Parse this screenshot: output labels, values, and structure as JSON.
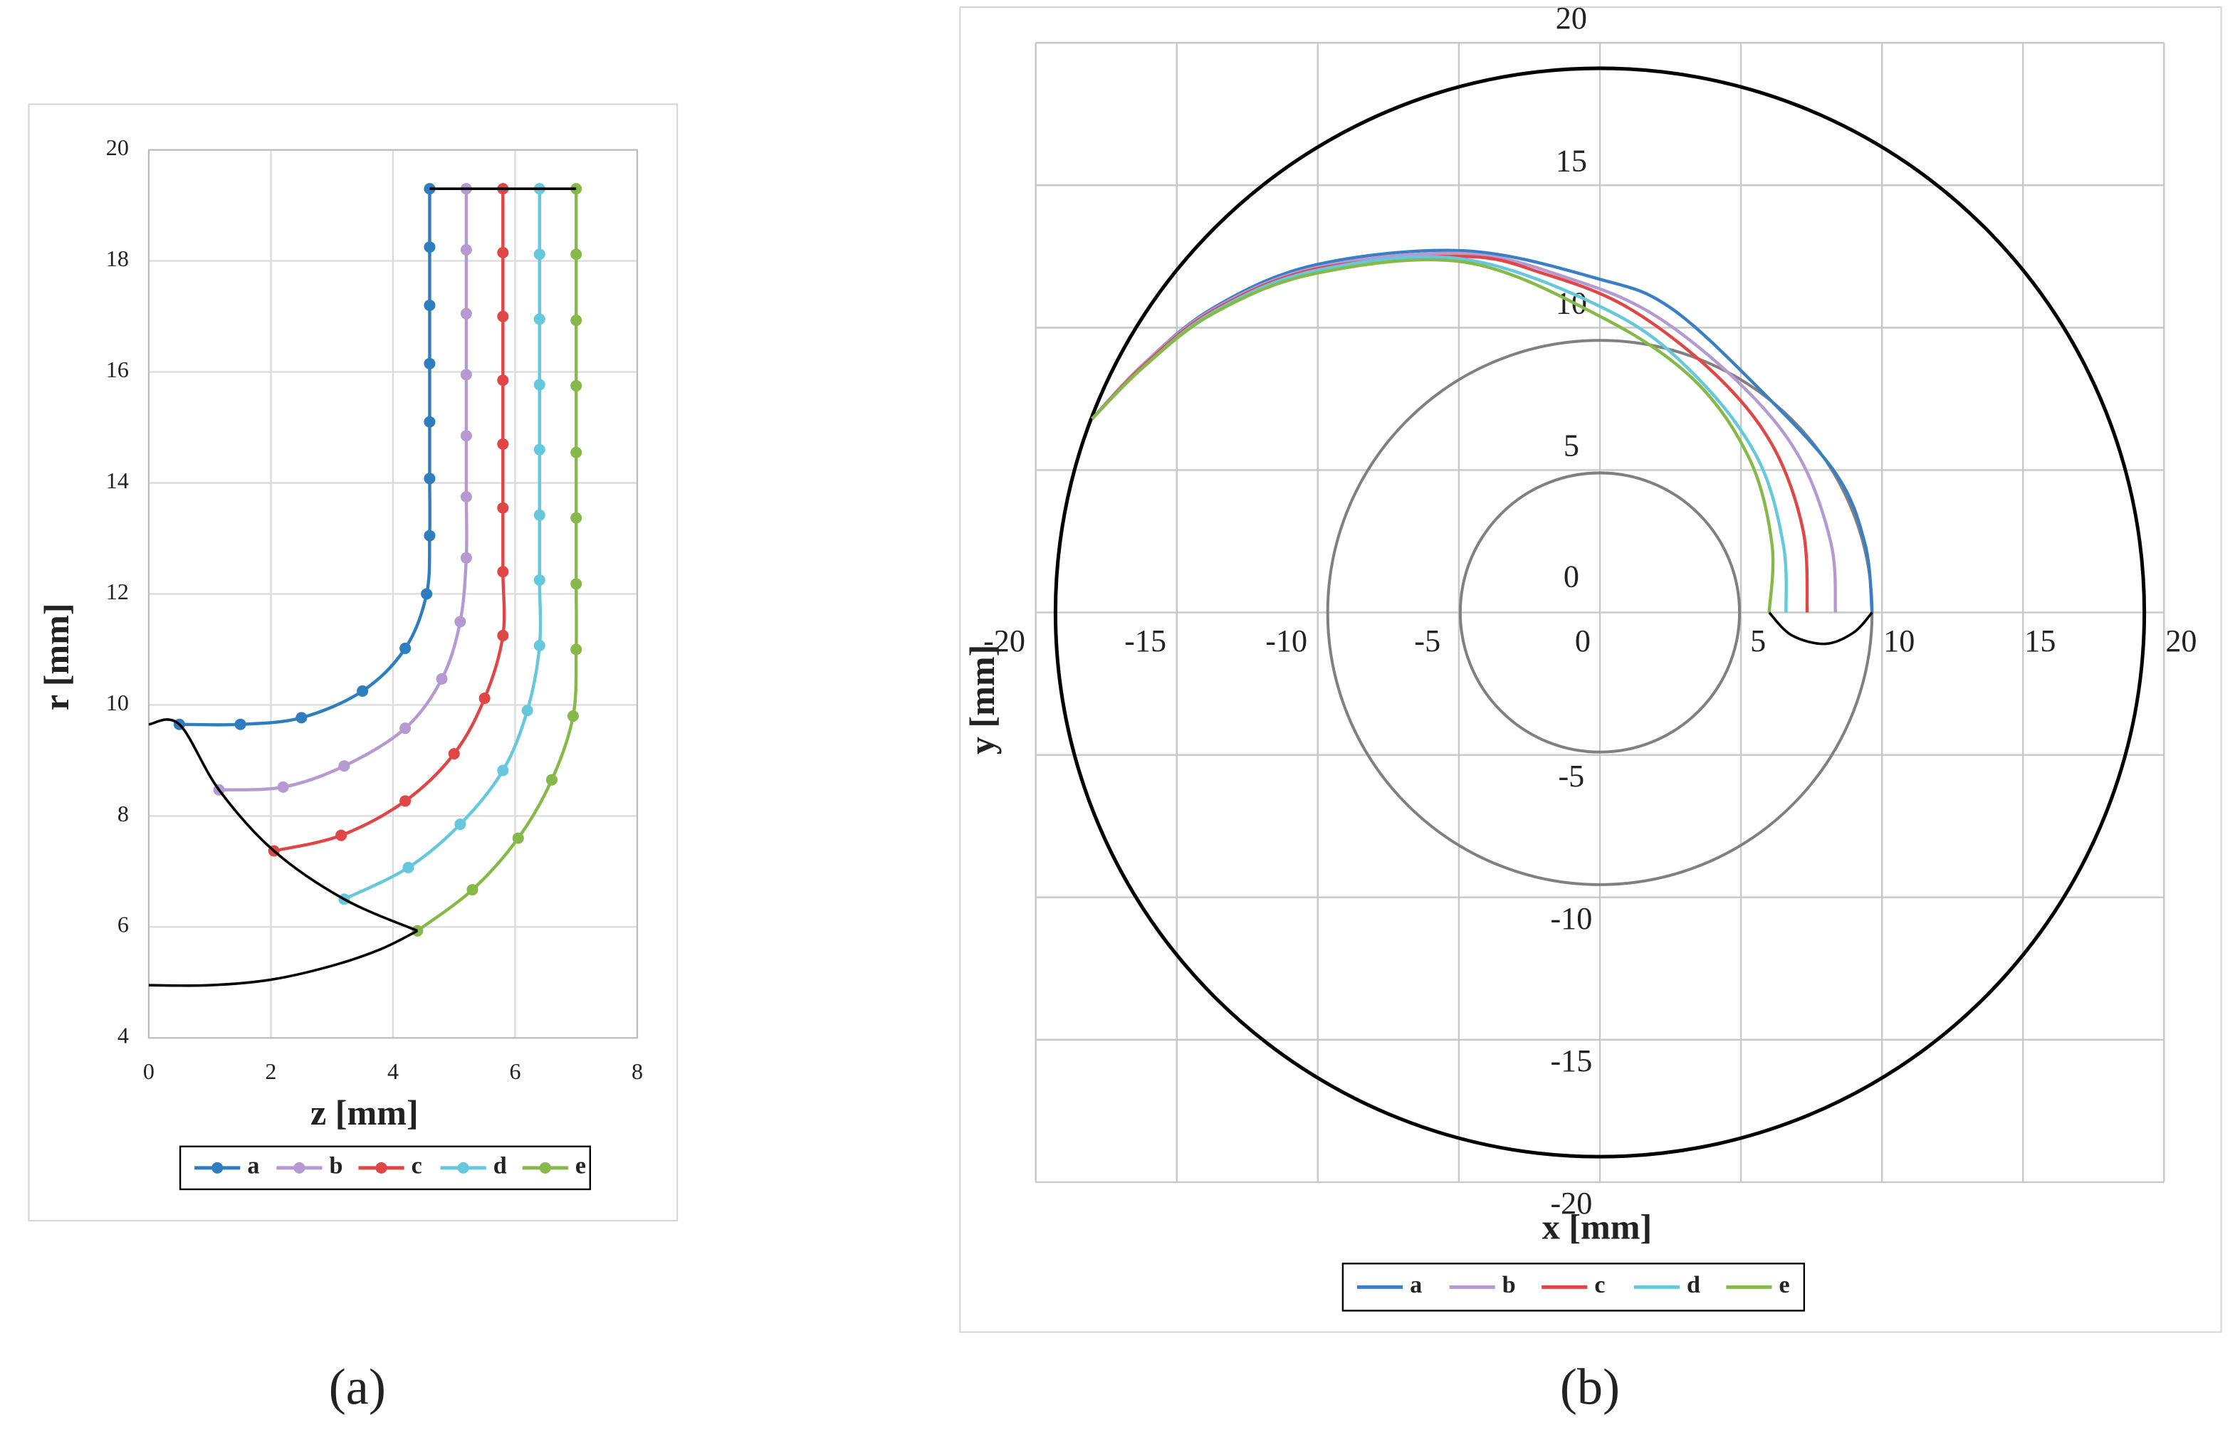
{
  "chart_data": [
    {
      "type": "scatter",
      "caption": "(a)",
      "x_label": "z [mm]",
      "y_label": "r [mm]",
      "xlim": [
        0,
        8
      ],
      "xticks": [
        0,
        2,
        4,
        6,
        8
      ],
      "ylim": [
        4,
        20
      ],
      "yticks": [
        4,
        6,
        8,
        10,
        12,
        14,
        16,
        18,
        20
      ],
      "grid": true,
      "series": [
        {
          "name": "a",
          "color": "#2e7ebf",
          "markers": true,
          "x": [
            0.5,
            1.5,
            2.5,
            3.5,
            4.2,
            4.55,
            4.6,
            4.6,
            4.6,
            4.6,
            4.6,
            4.6,
            4.6
          ],
          "values": [
            9.65,
            9.65,
            9.77,
            10.25,
            11.02,
            12.0,
            13.05,
            14.08,
            15.1,
            16.15,
            17.2,
            18.25,
            19.3
          ]
        },
        {
          "name": "b",
          "color": "#b49ad0",
          "markers": true,
          "x": [
            1.15,
            2.2,
            3.2,
            4.2,
            4.8,
            5.1,
            5.2,
            5.2,
            5.2,
            5.2,
            5.2,
            5.2,
            5.2
          ],
          "values": [
            8.47,
            8.52,
            8.9,
            9.58,
            10.47,
            11.5,
            12.65,
            13.75,
            14.85,
            15.95,
            17.05,
            18.2,
            19.3
          ]
        },
        {
          "name": "c",
          "color": "#e04646",
          "markers": true,
          "x": [
            2.05,
            3.15,
            4.2,
            5.0,
            5.5,
            5.8,
            5.8,
            5.8,
            5.8,
            5.8,
            5.8,
            5.8,
            5.8
          ],
          "values": [
            7.37,
            7.65,
            8.27,
            9.12,
            10.12,
            11.25,
            12.4,
            13.55,
            14.7,
            15.85,
            17.0,
            18.15,
            19.3
          ]
        },
        {
          "name": "d",
          "color": "#66c8dc",
          "markers": true,
          "x": [
            3.2,
            4.25,
            5.1,
            5.8,
            6.2,
            6.4,
            6.4,
            6.4,
            6.4,
            6.4,
            6.4,
            6.4,
            6.4
          ],
          "values": [
            6.5,
            7.07,
            7.85,
            8.82,
            9.9,
            11.07,
            12.25,
            13.42,
            14.6,
            15.77,
            16.95,
            18.12,
            19.3
          ]
        },
        {
          "name": "e",
          "color": "#86b94a",
          "markers": true,
          "x": [
            4.4,
            5.3,
            6.05,
            6.6,
            6.95,
            7.0,
            7.0,
            7.0,
            7.0,
            7.0,
            7.0,
            7.0,
            7.0
          ],
          "values": [
            5.93,
            6.67,
            7.6,
            8.65,
            9.8,
            11.0,
            12.18,
            13.37,
            14.55,
            15.75,
            16.93,
            18.12,
            19.3
          ]
        },
        {
          "color": "#000000",
          "markers": false,
          "x": [
            0,
            0.5,
            1.15,
            2.05,
            3.2,
            4.4
          ],
          "values": [
            9.65,
            9.65,
            8.47,
            7.37,
            6.5,
            5.93
          ]
        },
        {
          "color": "#000000",
          "markers": false,
          "x": [
            0,
            1,
            2,
            3,
            3.8,
            4.4
          ],
          "values": [
            4.95,
            4.95,
            5.05,
            5.3,
            5.6,
            5.93
          ]
        },
        {
          "color": "#000000",
          "markers": false,
          "x": [
            4.6,
            7.0
          ],
          "values": [
            19.3,
            19.3
          ]
        }
      ]
    },
    {
      "type": "line",
      "caption": "(b)",
      "x_label": "x [mm]",
      "y_label": "y [mm]",
      "xlim": [
        -20,
        20
      ],
      "xticks": [
        -20,
        -15,
        -10,
        -5,
        0,
        5,
        10,
        15,
        20
      ],
      "ylim": [
        -20,
        20
      ],
      "yticks": [
        -20,
        -15,
        -10,
        -5,
        0,
        5,
        10,
        15,
        20
      ],
      "grid": true,
      "circles": [
        {
          "r": 19.3,
          "color": "#000000"
        },
        {
          "r": 9.65,
          "color": "#808080"
        },
        {
          "r": 4.95,
          "color": "#808080"
        }
      ],
      "series": [
        {
          "name": "a",
          "color": "#3a7fc4",
          "markers": false,
          "x": [
            9.65,
            9.4,
            8.35,
            5.6,
            2.5,
            0,
            -4.8,
            -10.1,
            -13.7,
            -16.2,
            -18
          ],
          "values": [
            0,
            2.4,
            4.9,
            7.9,
            10.7,
            11.7,
            12.7,
            12.2,
            10.7,
            8.7,
            6.8
          ]
        },
        {
          "name": "b",
          "color": "#b49ad0",
          "markers": false,
          "x": [
            8.35,
            8.2,
            7.1,
            5.1,
            2.0,
            -1,
            -4.8,
            -10.1,
            -13.7,
            -16.2,
            -18
          ],
          "values": [
            0,
            2.4,
            5.4,
            7.9,
            10.4,
            11.7,
            12.6,
            12.1,
            10.65,
            8.7,
            6.8
          ]
        },
        {
          "name": "c",
          "color": "#e04646",
          "markers": false,
          "x": [
            7.35,
            7.2,
            6.1,
            4.05,
            1.0,
            -2,
            -4.8,
            -10.1,
            -13.7,
            -16.2,
            -18
          ],
          "values": [
            0,
            2.9,
            5.9,
            8.4,
            10.7,
            11.9,
            12.5,
            12.05,
            10.6,
            8.65,
            6.8
          ]
        },
        {
          "name": "d",
          "color": "#66c8dc",
          "markers": false,
          "x": [
            6.6,
            6.5,
            5.6,
            3.5,
            0.5,
            -4.8,
            -10.1,
            -13.7,
            -16.2,
            -18
          ],
          "values": [
            0,
            2.4,
            5.4,
            8.2,
            10.5,
            12.4,
            12.0,
            10.55,
            8.6,
            6.8
          ]
        },
        {
          "name": "e",
          "color": "#86b94a",
          "markers": false,
          "x": [
            6.0,
            6.1,
            5.3,
            3.3,
            0,
            -4.8,
            -10.1,
            -13.7,
            -16.2,
            -18
          ],
          "values": [
            0,
            2.4,
            5.4,
            8.2,
            10.4,
            12.3,
            11.9,
            10.5,
            8.6,
            6.8
          ]
        },
        {
          "color": "#000000",
          "markers": false,
          "x": [
            6.0,
            6.8,
            8.0,
            9.0,
            9.65
          ],
          "values": [
            0,
            -0.8,
            -1.1,
            -0.7,
            0
          ]
        }
      ]
    }
  ]
}
